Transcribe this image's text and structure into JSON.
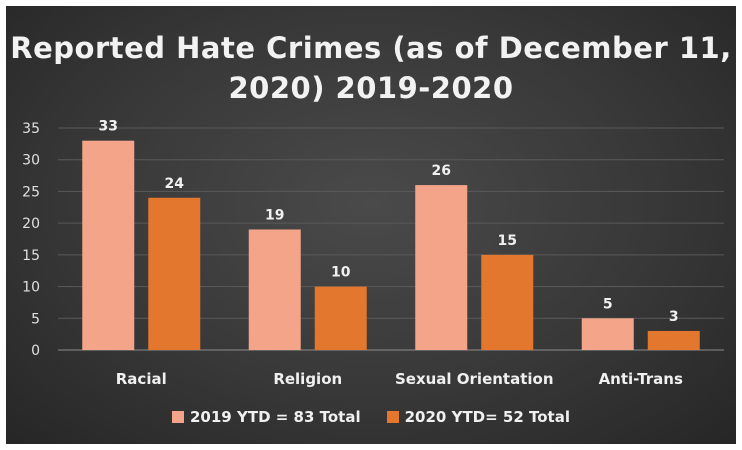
{
  "chart_data": {
    "type": "bar",
    "title": "Reported Hate Crimes (as of December 11, 2020) 2019-2020",
    "categories": [
      "Racial",
      "Religion",
      "Sexual Orientation",
      "Anti-Trans"
    ],
    "series": [
      {
        "name": "2019 YTD = 83 Total",
        "values": [
          33,
          19,
          26,
          5
        ],
        "color": "#f4a589"
      },
      {
        "name": "2020 YTD= 52 Total",
        "values": [
          24,
          10,
          15,
          3
        ],
        "color": "#e2772d"
      }
    ],
    "ylim": [
      0,
      35
    ],
    "yticks": [
      0,
      5,
      10,
      15,
      20,
      25,
      30,
      35
    ],
    "grid": true,
    "legend": "bottom",
    "data_labels": true
  }
}
